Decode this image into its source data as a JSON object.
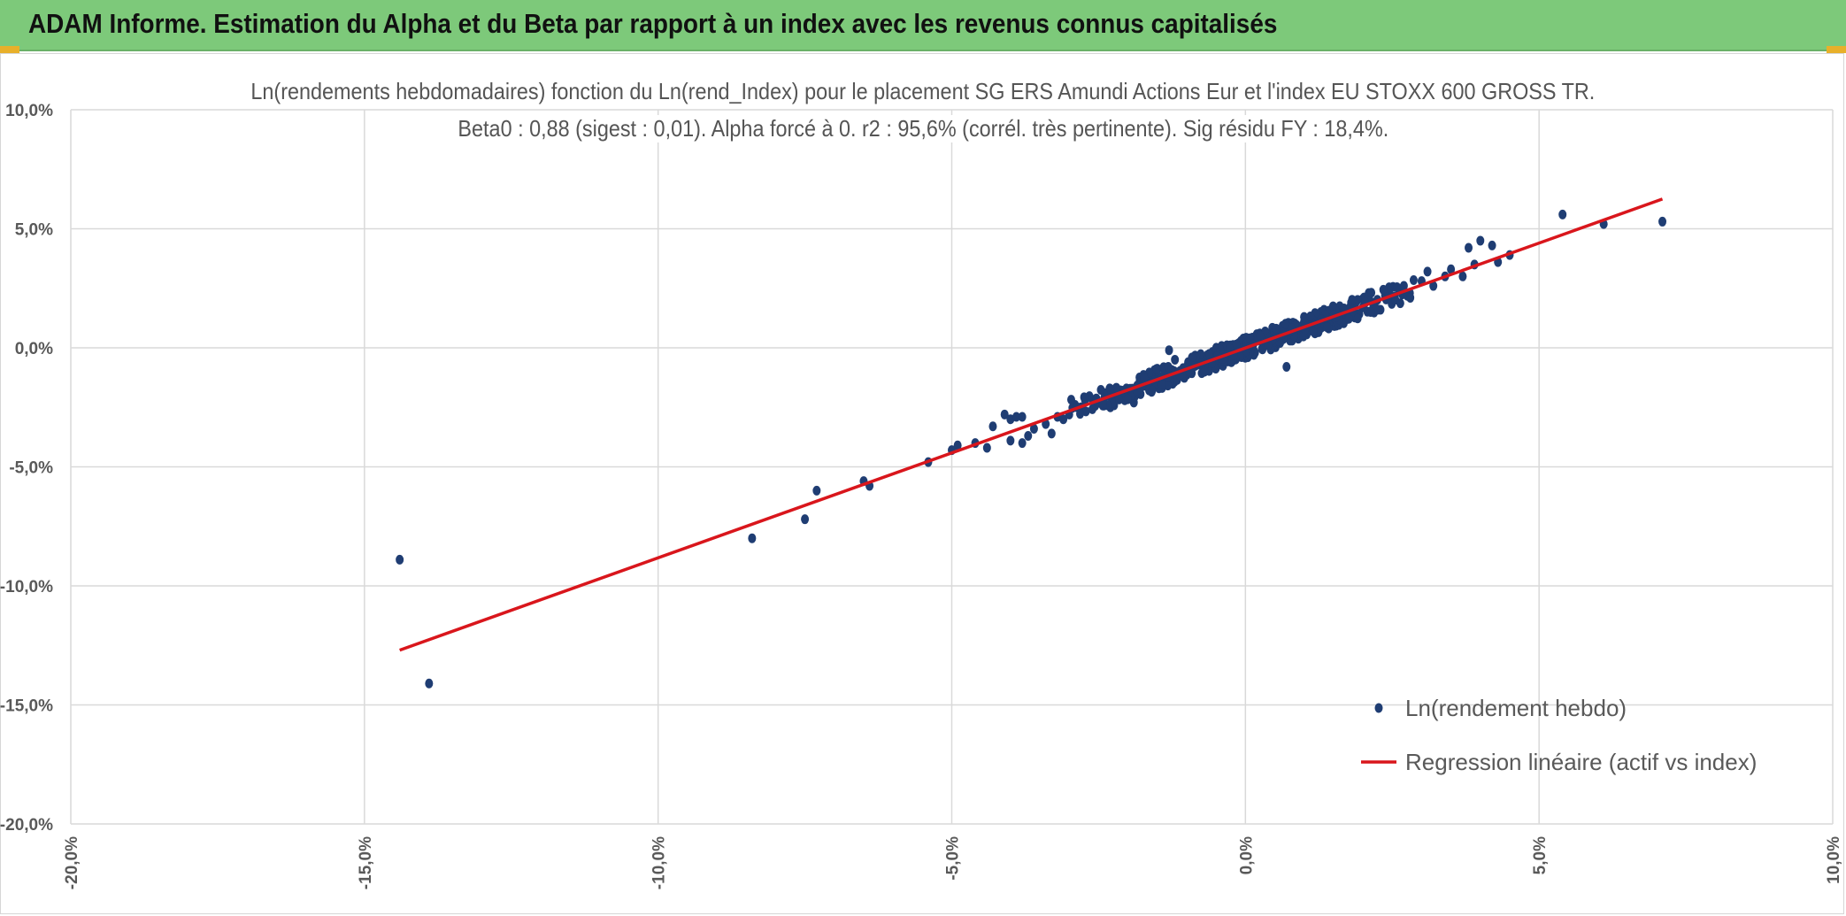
{
  "banner": {
    "title": "ADAM Informe. Estimation du Alpha et du Beta par rapport à un index avec les revenus connus capitalisés"
  },
  "colors": {
    "banner": "#7dc97a",
    "points": "#1f3d73",
    "regression": "#d9161c",
    "grid": "#d9d9d9",
    "axis_text": "#595959"
  },
  "chart_data": {
    "type": "scatter",
    "title": "Ln(rendements hebdomadaires) fonction du Ln(rend_Index) pour le placement SG ERS Amundi Actions Eur et l'index EU STOXX 600 GROSS TR.",
    "subtitle": "Beta0 : 0,88 (sigest : 0,01). Alpha forcé à 0. r2 : 95,6% (corrél. très pertinente). Sig résidu FY : 18,4%.",
    "xlim": [
      -20,
      10
    ],
    "ylim": [
      -20,
      10
    ],
    "x_ticks": [
      -20,
      -15,
      -10,
      -5,
      0,
      5,
      10
    ],
    "y_ticks": [
      -20,
      -15,
      -10,
      -5,
      0,
      5,
      10
    ],
    "x_tick_labels": [
      "-20,0%",
      "-15,0%",
      "-10,0%",
      "-5,0%",
      "0,0%",
      "5,0%",
      "10,0%"
    ],
    "y_tick_labels": [
      "-20,0%",
      "-15,0%",
      "-10,0%",
      "-5,0%",
      "0,0%",
      "5,0%",
      "10,0%"
    ],
    "grid": true,
    "legend_position": "bottom-right",
    "series": [
      {
        "name": "Ln(rendement hebdo)",
        "kind": "scatter",
        "points": [
          [
            -14.4,
            -8.9
          ],
          [
            -13.9,
            -14.1
          ],
          [
            -8.4,
            -8.0
          ],
          [
            -7.5,
            -7.2
          ],
          [
            -7.3,
            -6.0
          ],
          [
            -6.5,
            -5.6
          ],
          [
            -6.4,
            -5.8
          ],
          [
            -5.4,
            -4.8
          ],
          [
            -5.0,
            -4.3
          ],
          [
            -4.9,
            -4.1
          ],
          [
            -4.6,
            -4.0
          ],
          [
            -4.4,
            -4.2
          ],
          [
            -4.3,
            -3.3
          ],
          [
            -4.1,
            -2.8
          ],
          [
            -4.0,
            -3.0
          ],
          [
            -3.9,
            -2.9
          ],
          [
            -3.8,
            -2.9
          ],
          [
            -4.0,
            -3.9
          ],
          [
            -3.8,
            -4.0
          ],
          [
            -3.7,
            -3.7
          ],
          [
            -3.6,
            -3.4
          ],
          [
            -3.4,
            -3.2
          ],
          [
            -3.3,
            -3.6
          ],
          [
            -3.2,
            -2.9
          ],
          [
            -3.1,
            -3.0
          ],
          [
            -3.0,
            -2.8
          ],
          [
            -2.9,
            -2.4
          ],
          [
            -2.8,
            -2.5
          ],
          [
            -2.6,
            -2.2
          ],
          [
            -2.5,
            -2.3
          ],
          [
            -2.4,
            -1.9
          ],
          [
            -2.3,
            -2.5
          ],
          [
            -2.2,
            -1.7
          ],
          [
            -2.1,
            -1.8
          ],
          [
            -1.9,
            -2.3
          ],
          [
            -1.8,
            -1.4
          ],
          [
            -1.7,
            -1.6
          ],
          [
            -1.6,
            -1.2
          ],
          [
            -1.5,
            -1.5
          ],
          [
            -1.3,
            -0.1
          ],
          [
            -1.2,
            -0.5
          ],
          [
            -1.0,
            -0.8
          ],
          [
            -0.9,
            -0.4
          ],
          [
            -0.8,
            -0.7
          ],
          [
            -0.6,
            -0.3
          ],
          [
            -0.5,
            -0.6
          ],
          [
            -0.4,
            -0.2
          ],
          [
            -0.3,
            -0.5
          ],
          [
            -0.2,
            0.0
          ],
          [
            -0.1,
            -0.3
          ],
          [
            0.0,
            0.2
          ],
          [
            0.1,
            -0.1
          ],
          [
            0.2,
            0.3
          ],
          [
            0.3,
            0.1
          ],
          [
            0.4,
            0.6
          ],
          [
            0.5,
            0.2
          ],
          [
            0.6,
            0.7
          ],
          [
            0.7,
            -0.8
          ],
          [
            0.8,
            0.9
          ],
          [
            0.9,
            0.5
          ],
          [
            1.0,
            1.1
          ],
          [
            1.1,
            0.8
          ],
          [
            1.2,
            1.4
          ],
          [
            1.3,
            1.0
          ],
          [
            1.4,
            0.9
          ],
          [
            1.5,
            1.3
          ],
          [
            1.6,
            1.6
          ],
          [
            1.7,
            1.2
          ],
          [
            1.8,
            1.9
          ],
          [
            1.9,
            1.4
          ],
          [
            2.0,
            1.7
          ],
          [
            2.1,
            2.3
          ],
          [
            2.2,
            1.9
          ],
          [
            2.3,
            1.6
          ],
          [
            2.4,
            2.2
          ],
          [
            2.5,
            2.0
          ],
          [
            2.6,
            2.5
          ],
          [
            2.8,
            2.3
          ],
          [
            3.0,
            2.8
          ],
          [
            3.1,
            3.2
          ],
          [
            3.2,
            2.6
          ],
          [
            3.4,
            3.0
          ],
          [
            3.5,
            3.3
          ],
          [
            3.7,
            3.0
          ],
          [
            3.8,
            4.2
          ],
          [
            3.9,
            3.5
          ],
          [
            4.0,
            4.5
          ],
          [
            4.2,
            4.3
          ],
          [
            4.3,
            3.6
          ],
          [
            4.5,
            3.9
          ],
          [
            5.4,
            5.6
          ],
          [
            6.1,
            5.2
          ],
          [
            7.1,
            5.3
          ]
        ]
      },
      {
        "name": "Regression linéaire (actif vs index)",
        "kind": "line",
        "points": [
          [
            -14.4,
            -12.7
          ],
          [
            7.1,
            6.25
          ]
        ]
      }
    ]
  }
}
